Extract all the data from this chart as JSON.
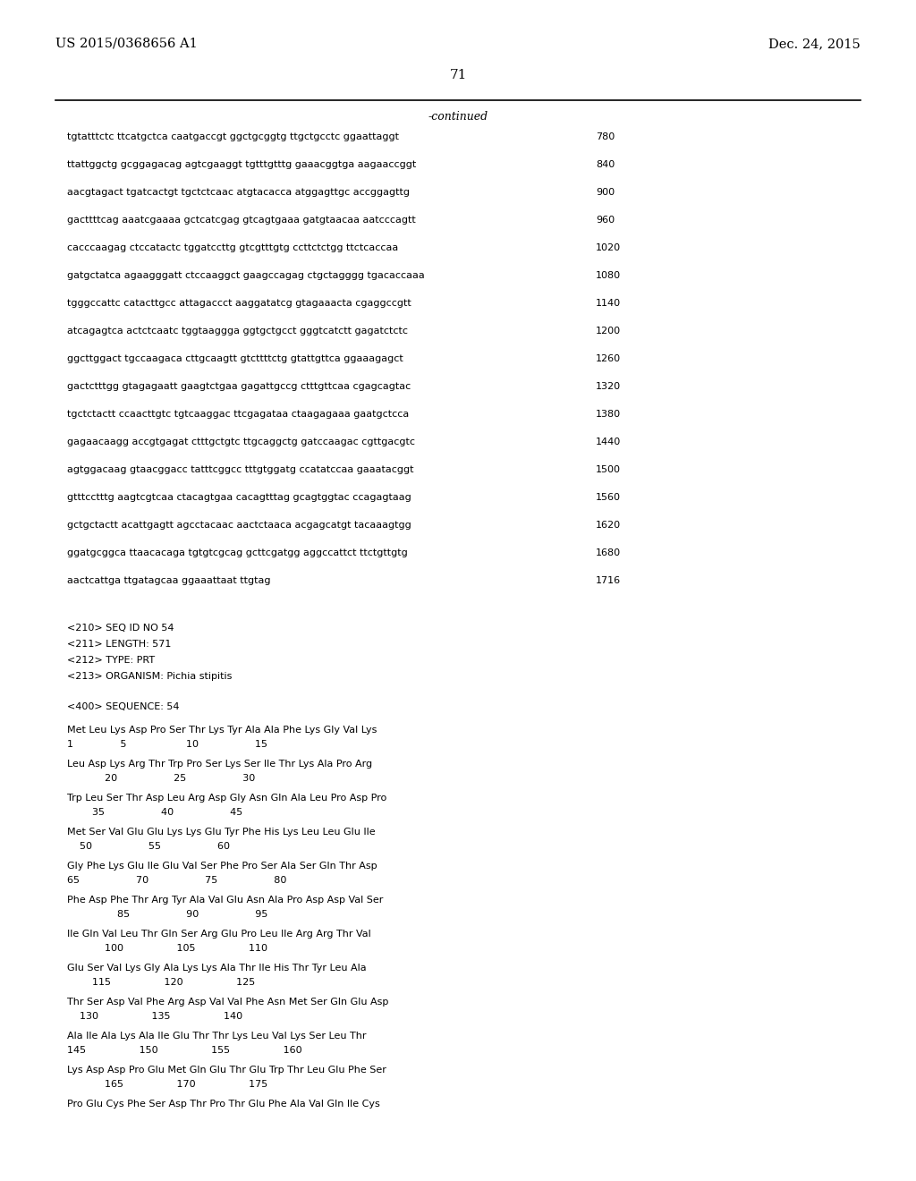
{
  "background_color": "#ffffff",
  "header_left": "US 2015/0368656 A1",
  "header_right": "Dec. 24, 2015",
  "page_number": "71",
  "continued_label": "-continued",
  "sequence_lines": [
    [
      "tgtatttctc ttcatgctca caatgaccgt ggctgcggtg ttgctgcctc ggaattaggt",
      "780"
    ],
    [
      "ttattggctg gcggagacag agtcgaaggt tgtttgtttg gaaacggtga aagaaccggt",
      "840"
    ],
    [
      "aacgtagact tgatcactgt tgctctcaac atgtacacca atggagttgc accggagttg",
      "900"
    ],
    [
      "gacttttcag aaatcgaaaa gctcatcgag gtcagtgaaa gatgtaacaa aatcccagtt",
      "960"
    ],
    [
      "cacccaagag ctccatactc tggatccttg gtcgtttgtg ccttctctgg ttctcaccaa",
      "1020"
    ],
    [
      "gatgctatca agaagggatt ctccaaggct gaagccagag ctgctagggg tgacaccaaa",
      "1080"
    ],
    [
      "tgggccattc catacttgcc attagaccct aaggatatcg gtagaaacta cgaggccgtt",
      "1140"
    ],
    [
      "atcagagtca actctcaatc tggtaaggga ggtgctgcct gggtcatctt gagatctctc",
      "1200"
    ],
    [
      "ggcttggact tgccaagaca cttgcaagtt gtcttttctg gtattgttca ggaaagagct",
      "1260"
    ],
    [
      "gactctttgg gtagagaatt gaagtctgaa gagattgccg ctttgttcaa cgagcagtac",
      "1320"
    ],
    [
      "tgctctactt ccaacttgtc tgtcaaggac ttcgagataa ctaagagaaa gaatgctcca",
      "1380"
    ],
    [
      "gagaacaagg accgtgagat ctttgctgtc ttgcaggctg gatccaagac cgttgacgtc",
      "1440"
    ],
    [
      "agtggacaag gtaacggacc tatttcggcc tttgtggatg ccatatccaa gaaatacggt",
      "1500"
    ],
    [
      "gtttcctttg aagtcgtcaa ctacagtgaa cacagtttag gcagtggtac ccagagtaag",
      "1560"
    ],
    [
      "gctgctactt acattgagtt agcctacaac aactctaaca acgagcatgt tacaaagtgg",
      "1620"
    ],
    [
      "ggatgcggca ttaacacaga tgtgtcgcag gcttcgatgg aggccattct ttctgttgtg",
      "1680"
    ],
    [
      "aactcattga ttgatagcaa ggaaattaat ttgtag",
      "1716"
    ]
  ],
  "metadata_lines": [
    "<210> SEQ ID NO 54",
    "<211> LENGTH: 571",
    "<212> TYPE: PRT",
    "<213> ORGANISM: Pichia stipitis"
  ],
  "sequence_label": "<400> SEQUENCE: 54",
  "protein_blocks": [
    {
      "seq": "Met Leu Lys Asp Pro Ser Thr Lys Tyr Ala Ala Phe Lys Gly Val Lys",
      "num": "1               5                   10                  15"
    },
    {
      "seq": "Leu Asp Lys Arg Thr Trp Pro Ser Lys Ser Ile Thr Lys Ala Pro Arg",
      "num": "            20                  25                  30"
    },
    {
      "seq": "Trp Leu Ser Thr Asp Leu Arg Asp Gly Asn Gln Ala Leu Pro Asp Pro",
      "num": "        35                  40                  45"
    },
    {
      "seq": "Met Ser Val Glu Glu Lys Lys Glu Tyr Phe His Lys Leu Leu Glu Ile",
      "num": "    50                  55                  60"
    },
    {
      "seq": "Gly Phe Lys Glu Ile Glu Val Ser Phe Pro Ser Ala Ser Gln Thr Asp",
      "num": "65                  70                  75                  80"
    },
    {
      "seq": "Phe Asp Phe Thr Arg Tyr Ala Val Glu Asn Ala Pro Asp Asp Val Ser",
      "num": "                85                  90                  95"
    },
    {
      "seq": "Ile Gln Val Leu Thr Gln Ser Arg Glu Pro Leu Ile Arg Arg Thr Val",
      "num": "            100                 105                 110"
    },
    {
      "seq": "Glu Ser Val Lys Gly Ala Lys Lys Ala Thr Ile His Thr Tyr Leu Ala",
      "num": "        115                 120                 125"
    },
    {
      "seq": "Thr Ser Asp Val Phe Arg Asp Val Val Phe Asn Met Ser Gln Glu Asp",
      "num": "    130                 135                 140"
    },
    {
      "seq": "Ala Ile Ala Lys Ala Ile Glu Thr Thr Lys Leu Val Lys Ser Leu Thr",
      "num": "145                 150                 155                 160"
    },
    {
      "seq": "Lys Asp Asp Pro Glu Met Gln Glu Thr Glu Trp Thr Leu Glu Phe Ser",
      "num": "            165                 170                 175"
    },
    {
      "seq": "Pro Glu Cys Phe Ser Asp Thr Pro Thr Glu Phe Ala Val Gln Ile Cys",
      "num": ""
    }
  ]
}
